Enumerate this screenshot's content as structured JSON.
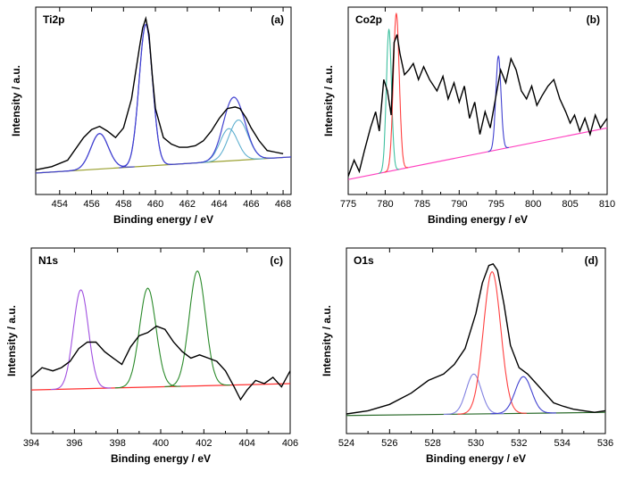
{
  "chart_data": [
    {
      "type": "line",
      "panel_label": "(a)",
      "element": "Ti2p",
      "xlabel": "Binding energy / eV",
      "ylabel": "Intensity / a.u.",
      "xlim": [
        452.5,
        468.5
      ],
      "ylim": [
        0,
        1
      ],
      "xticks": [
        454,
        456,
        458,
        460,
        462,
        464,
        466,
        468
      ],
      "xtick_labels": [
        "454",
        "456",
        "458",
        "460",
        "462",
        "464",
        "466",
        "468"
      ],
      "colors": {
        "measured": "#000000",
        "fit": "#4040d0",
        "component": "#60b0d0",
        "background": "#9aa030"
      },
      "background": {
        "x": [
          452.5,
          468.5
        ],
        "y": [
          0.04,
          0.14
        ]
      },
      "measured": {
        "x": [
          452.5,
          453.5,
          454.5,
          455.5,
          456.0,
          456.5,
          457.0,
          457.5,
          458.0,
          458.5,
          459.0,
          459.2,
          459.4,
          459.6,
          459.8,
          460.0,
          460.5,
          461.0,
          461.5,
          462.0,
          462.5,
          463.0,
          463.5,
          464.0,
          464.5,
          465.0,
          465.3,
          465.7,
          466.0,
          466.5,
          467.0,
          467.5,
          468.0
        ],
        "y": [
          0.06,
          0.08,
          0.12,
          0.26,
          0.31,
          0.33,
          0.3,
          0.26,
          0.32,
          0.5,
          0.82,
          0.94,
          1.0,
          0.9,
          0.65,
          0.44,
          0.26,
          0.22,
          0.2,
          0.2,
          0.21,
          0.24,
          0.3,
          0.38,
          0.44,
          0.45,
          0.44,
          0.38,
          0.32,
          0.24,
          0.18,
          0.17,
          0.16
        ]
      },
      "components": [
        {
          "center": 456.5,
          "height": 0.22,
          "width": 0.55
        },
        {
          "center": 459.4,
          "height": 0.88,
          "width": 0.42
        },
        {
          "center": 464.6,
          "height": 0.2,
          "width": 0.55
        },
        {
          "center": 465.2,
          "height": 0.25,
          "width": 0.6
        }
      ]
    },
    {
      "type": "line",
      "panel_label": "(b)",
      "element": "Co2p",
      "xlabel": "Binding energy / eV",
      "ylabel": "Intensity / a.u.",
      "xlim": [
        775,
        810
      ],
      "ylim": [
        0,
        1
      ],
      "xticks": [
        775,
        780,
        785,
        790,
        795,
        800,
        805,
        810
      ],
      "xtick_labels": [
        "775",
        "780",
        "785",
        "790",
        "795",
        "800",
        "805",
        "810"
      ],
      "colors": {
        "measured": "#000000",
        "component1": "#40c0a0",
        "component2": "#ff4040",
        "component3": "#4040d0",
        "background": "#ff40c0"
      },
      "background": {
        "x": [
          775,
          810
        ],
        "y": [
          0.0,
          0.32
        ]
      },
      "measured": {
        "x": [
          775,
          775.8,
          776.5,
          777.2,
          778.0,
          778.7,
          779.2,
          779.8,
          780.3,
          780.8,
          781.2,
          781.6,
          782.0,
          782.6,
          783.2,
          783.8,
          784.5,
          785.2,
          786.0,
          787.0,
          787.8,
          788.5,
          789.3,
          790.0,
          790.7,
          791.4,
          792.1,
          792.8,
          793.5,
          794.2,
          794.9,
          795.6,
          796.3,
          797.0,
          797.7,
          798.4,
          799.1,
          799.8,
          800.5,
          801.2,
          802.0,
          802.8,
          803.6,
          804.4,
          805.0,
          805.6,
          806.3,
          807.0,
          807.7,
          808.4,
          809.1,
          810.0
        ],
        "y": [
          0.02,
          0.12,
          0.05,
          0.18,
          0.32,
          0.42,
          0.3,
          0.62,
          0.55,
          0.4,
          0.85,
          0.9,
          0.78,
          0.65,
          0.68,
          0.72,
          0.62,
          0.7,
          0.62,
          0.55,
          0.64,
          0.5,
          0.6,
          0.48,
          0.58,
          0.38,
          0.48,
          0.28,
          0.42,
          0.32,
          0.5,
          0.68,
          0.6,
          0.75,
          0.68,
          0.55,
          0.5,
          0.58,
          0.46,
          0.52,
          0.58,
          0.62,
          0.5,
          0.42,
          0.35,
          0.4,
          0.3,
          0.38,
          0.28,
          0.4,
          0.32,
          0.38
        ]
      },
      "components": [
        {
          "center": 780.5,
          "height": 0.88,
          "width": 0.35
        },
        {
          "center": 781.5,
          "height": 0.97,
          "width": 0.4
        },
        {
          "center": 795.3,
          "height": 0.58,
          "width": 0.35
        }
      ]
    },
    {
      "type": "line",
      "panel_label": "(c)",
      "element": "N1s",
      "xlabel": "Binding energy / eV",
      "ylabel": "Intensity / a.u.",
      "xlim": [
        394,
        406
      ],
      "ylim": [
        0,
        1
      ],
      "xticks": [
        394,
        396,
        398,
        400,
        402,
        404,
        406
      ],
      "xtick_labels": [
        "394",
        "396",
        "398",
        "400",
        "402",
        "404",
        "406"
      ],
      "colors": {
        "measured": "#000000",
        "component1": "#a050e0",
        "component2": "#2a8a2a",
        "component3": "#2a8a2a",
        "background": "#ff3030"
      },
      "background": {
        "x": [
          394,
          406
        ],
        "y": [
          0.18,
          0.22
        ]
      },
      "measured": {
        "x": [
          394.0,
          394.5,
          395.0,
          395.4,
          395.8,
          396.2,
          396.6,
          397.0,
          397.4,
          397.8,
          398.2,
          398.6,
          399.0,
          399.4,
          399.8,
          400.2,
          400.6,
          401.0,
          401.4,
          401.8,
          402.2,
          402.6,
          403.0,
          403.4,
          403.7,
          404.0,
          404.4,
          404.8,
          405.2,
          405.6,
          406.0
        ],
        "y": [
          0.26,
          0.32,
          0.3,
          0.32,
          0.36,
          0.44,
          0.48,
          0.48,
          0.42,
          0.38,
          0.34,
          0.45,
          0.52,
          0.54,
          0.58,
          0.56,
          0.48,
          0.42,
          0.38,
          0.4,
          0.38,
          0.36,
          0.3,
          0.2,
          0.12,
          0.18,
          0.24,
          0.22,
          0.26,
          0.2,
          0.3
        ]
      },
      "components": [
        {
          "center": 396.3,
          "height": 0.62,
          "width": 0.35
        },
        {
          "center": 399.4,
          "height": 0.62,
          "width": 0.38
        },
        {
          "center": 401.7,
          "height": 0.72,
          "width": 0.38
        }
      ]
    },
    {
      "type": "line",
      "panel_label": "(d)",
      "element": "O1s",
      "xlabel": "Binding energy / eV",
      "ylabel": "Intensity / a.u.",
      "xlim": [
        524,
        536
      ],
      "ylim": [
        0,
        1
      ],
      "xticks": [
        524,
        526,
        528,
        530,
        532,
        534,
        536
      ],
      "xtick_labels": [
        "524",
        "526",
        "528",
        "530",
        "532",
        "534",
        "536"
      ],
      "colors": {
        "measured": "#000000",
        "component1": "#8080e0",
        "component2": "#ff4040",
        "component3": "#4040d0",
        "background": "#2a6a2a"
      },
      "background": {
        "x": [
          524,
          536
        ],
        "y": [
          0.02,
          0.04
        ]
      },
      "measured": {
        "x": [
          524.0,
          525.0,
          526.0,
          527.0,
          527.8,
          528.5,
          529.0,
          529.5,
          530.0,
          530.3,
          530.6,
          530.8,
          531.0,
          531.3,
          531.6,
          532.0,
          532.4,
          532.8,
          533.2,
          533.6,
          534.0,
          534.5,
          535.0,
          535.5,
          536.0
        ],
        "y": [
          0.03,
          0.05,
          0.09,
          0.16,
          0.24,
          0.28,
          0.34,
          0.44,
          0.66,
          0.85,
          0.96,
          0.97,
          0.93,
          0.72,
          0.46,
          0.32,
          0.28,
          0.22,
          0.16,
          0.1,
          0.08,
          0.06,
          0.05,
          0.04,
          0.05
        ]
      },
      "components": [
        {
          "center": 529.9,
          "height": 0.25,
          "width": 0.35
        },
        {
          "center": 530.75,
          "height": 0.89,
          "width": 0.4
        },
        {
          "center": 532.2,
          "height": 0.23,
          "width": 0.38
        }
      ]
    }
  ]
}
